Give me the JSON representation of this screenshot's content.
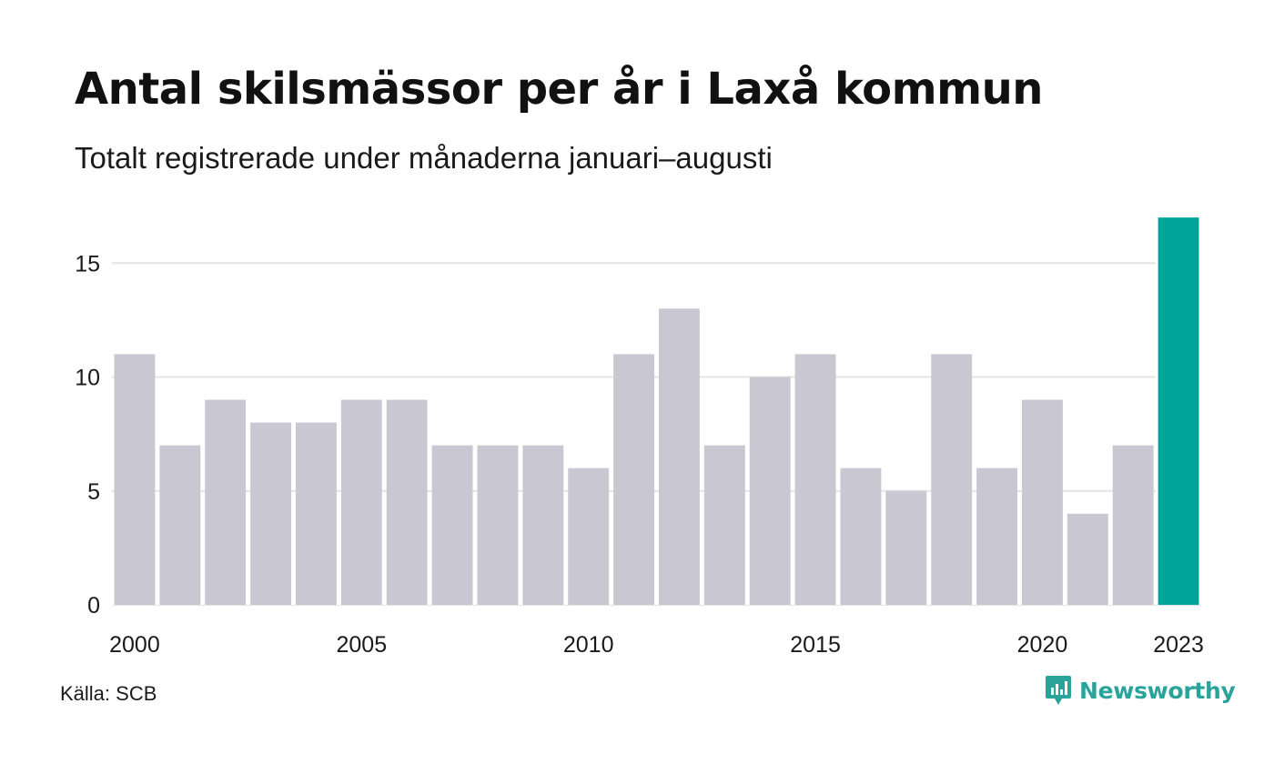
{
  "header": {
    "title": "Antal skilsmässor per år i Laxå kommun",
    "subtitle": "Totalt registrerade under månaderna januari–augusti"
  },
  "footer": {
    "source": "Källa: SCB",
    "brand": "Newsworthy"
  },
  "colors": {
    "bar": "#c8c7d2",
    "highlight": "#00a599",
    "grid": "#e4e4e4",
    "brand": "#2aa39a"
  },
  "chart_data": {
    "type": "bar",
    "title": "Antal skilsmässor per år i Laxå kommun",
    "subtitle": "Totalt registrerade under månaderna januari–augusti",
    "xlabel": "",
    "ylabel": "",
    "categories": [
      2000,
      2001,
      2002,
      2003,
      2004,
      2005,
      2006,
      2007,
      2008,
      2009,
      2010,
      2011,
      2012,
      2013,
      2014,
      2015,
      2016,
      2017,
      2018,
      2019,
      2020,
      2021,
      2022,
      2023
    ],
    "values": [
      11,
      7,
      9,
      8,
      8,
      9,
      9,
      7,
      7,
      7,
      6,
      11,
      13,
      7,
      10,
      11,
      6,
      5,
      11,
      6,
      9,
      4,
      7,
      17
    ],
    "highlight_category": 2023,
    "x_tick_labels": [
      "2000",
      "2005",
      "2010",
      "2015",
      "2020",
      "2023"
    ],
    "y_ticks": [
      0,
      5,
      10,
      15
    ],
    "ylim": [
      0,
      17
    ],
    "grid": true,
    "legend": "none"
  }
}
